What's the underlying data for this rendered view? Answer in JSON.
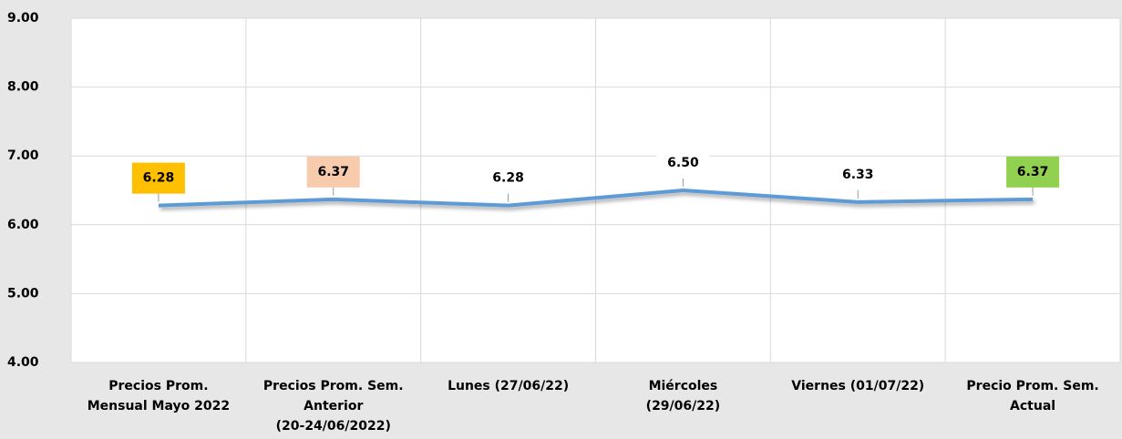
{
  "chart_data": {
    "type": "line",
    "categories": [
      [
        "Precios Prom.",
        "Mensual Mayo 2022"
      ],
      [
        "Precios Prom. Sem.",
        "Anterior",
        "(20-24/06/2022)"
      ],
      [
        "Lunes  (27/06/22)"
      ],
      [
        "Miércoles",
        "(29/06/22)"
      ],
      [
        "Viernes  (01/07/22)"
      ],
      [
        "Precio Prom. Sem.",
        "Actual"
      ]
    ],
    "values": [
      6.28,
      6.37,
      6.28,
      6.5,
      6.33,
      6.37
    ],
    "value_labels": [
      "6.28",
      "6.37",
      "6.28",
      "6.50",
      "6.33",
      "6.37"
    ],
    "label_colors": [
      "#ffc000",
      "#f8cbad",
      "#ffffff",
      "#ffffff",
      "#ffffff",
      "#92d050"
    ],
    "color": "#5b9bd5",
    "ylim": [
      4,
      9
    ],
    "yticks": [
      {
        "value": 4,
        "label": "4.00"
      },
      {
        "value": 5,
        "label": "5.00"
      },
      {
        "value": 6,
        "label": "6.00"
      },
      {
        "value": 7,
        "label": "7.00"
      },
      {
        "value": 8,
        "label": "8.00"
      },
      {
        "value": 9,
        "label": "9.00"
      }
    ],
    "grid": true
  }
}
